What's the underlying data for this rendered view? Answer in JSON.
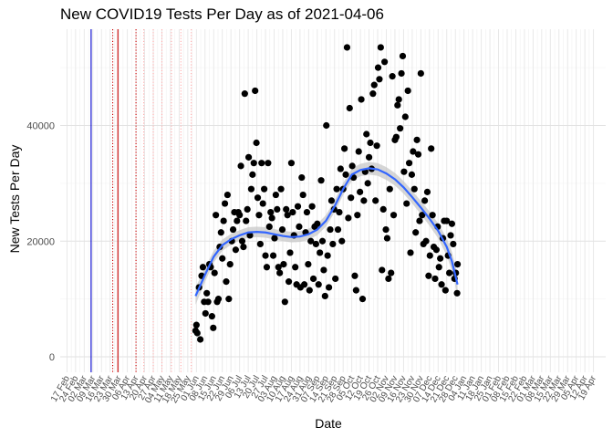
{
  "chart_data": {
    "type": "scatter",
    "title": "New COVID19 Tests Per Day as of 2021-04-06",
    "xlabel": "Date",
    "ylabel": "New Tests Per Day",
    "ylim": [
      -2500,
      56500
    ],
    "y_ticks": [
      0,
      20000,
      40000
    ],
    "grid": true,
    "x_ticks": [
      "17 Feb",
      "24 Feb",
      "02 Mar",
      "09 Mar",
      "16 Mar",
      "23 Mar",
      "30 Mar",
      "06 Apr",
      "13 Apr",
      "20 Apr",
      "27 Apr",
      "04 May",
      "11 May",
      "18 May",
      "25 May",
      "01 Jun",
      "08 Jun",
      "15 Jun",
      "22 Jun",
      "29 Jun",
      "06 Jul",
      "13 Jul",
      "20 Jul",
      "27 Jul",
      "03 Aug",
      "10 Aug",
      "17 Aug",
      "24 Aug",
      "31 Aug",
      "07 Sep",
      "14 Sep",
      "21 Sep",
      "28 Sep",
      "05 Oct",
      "12 Oct",
      "19 Oct",
      "26 Oct",
      "02 Nov",
      "09 Nov",
      "16 Nov",
      "23 Nov",
      "30 Nov",
      "07 Dec",
      "14 Dec",
      "21 Dec",
      "28 Dec",
      "04 Jan",
      "11 Jan",
      "18 Jan",
      "25 Jan",
      "01 Feb",
      "08 Feb",
      "15 Feb",
      "22 Feb",
      "01 Mar",
      "08 Mar",
      "15 Mar",
      "22 Mar",
      "29 Mar",
      "05 Apr",
      "12 Apr",
      "19 Apr"
    ],
    "vlines": [
      {
        "week": 2.8,
        "color": "#0000cc",
        "style": "solid"
      },
      {
        "week": 5.3,
        "color": "#cc0000",
        "style": "dotted"
      },
      {
        "week": 5.9,
        "color": "#cc0000",
        "style": "solid"
      },
      {
        "week": 8.0,
        "color": "#cc0000",
        "style": "dotted"
      },
      {
        "week": 8.9,
        "color": "#ffaaaa",
        "style": "dotted"
      },
      {
        "week": 10.0,
        "color": "#ffaaaa",
        "style": "dotted"
      },
      {
        "week": 11.0,
        "color": "#ffaaaa",
        "style": "dotted"
      },
      {
        "week": 12.1,
        "color": "#ffaaaa",
        "style": "dotted"
      },
      {
        "week": 13.2,
        "color": "#ffaaaa",
        "style": "dotted"
      },
      {
        "week": 14.4,
        "color": "#ffaaaa",
        "style": "dotted"
      }
    ],
    "series": [
      {
        "points": [
          [
            14.9,
            4500
          ],
          [
            15.0,
            5500
          ],
          [
            15.1,
            4100
          ],
          [
            15.3,
            12000
          ],
          [
            15.45,
            3000
          ],
          [
            15.6,
            14000
          ],
          [
            15.75,
            15500
          ],
          [
            15.9,
            9500
          ],
          [
            16.05,
            7500
          ],
          [
            16.2,
            11000
          ],
          [
            16.35,
            9500
          ],
          [
            16.5,
            16000
          ],
          [
            16.65,
            15500
          ],
          [
            16.8,
            7000
          ],
          [
            16.95,
            5000
          ],
          [
            17.1,
            14500
          ],
          [
            17.25,
            24500
          ],
          [
            17.4,
            9500
          ],
          [
            17.55,
            10000
          ],
          [
            17.7,
            19000
          ],
          [
            17.85,
            21500
          ],
          [
            18.0,
            17000
          ],
          [
            18.15,
            23500
          ],
          [
            18.3,
            26500
          ],
          [
            18.45,
            13000
          ],
          [
            18.6,
            28000
          ],
          [
            18.75,
            10000
          ],
          [
            18.9,
            16000
          ],
          [
            19.1,
            20000
          ],
          [
            19.25,
            22000
          ],
          [
            19.4,
            25000
          ],
          [
            19.55,
            18500
          ],
          [
            19.7,
            23500
          ],
          [
            19.85,
            25000
          ],
          [
            20.0,
            24500
          ],
          [
            20.15,
            33000
          ],
          [
            20.3,
            20000
          ],
          [
            20.45,
            19000
          ],
          [
            20.6,
            45500
          ],
          [
            20.75,
            23500
          ],
          [
            20.9,
            25500
          ],
          [
            21.05,
            34500
          ],
          [
            21.2,
            21000
          ],
          [
            21.35,
            29000
          ],
          [
            21.5,
            31500
          ],
          [
            21.65,
            33500
          ],
          [
            21.8,
            46000
          ],
          [
            21.95,
            37000
          ],
          [
            22.1,
            27500
          ],
          [
            22.25,
            24500
          ],
          [
            22.4,
            19500
          ],
          [
            22.55,
            33500
          ],
          [
            22.7,
            26500
          ],
          [
            22.85,
            29000
          ],
          [
            23.0,
            17500
          ],
          [
            23.15,
            15500
          ],
          [
            23.3,
            33500
          ],
          [
            23.45,
            22500
          ],
          [
            23.6,
            25000
          ],
          [
            23.75,
            24000
          ],
          [
            23.9,
            17500
          ],
          [
            24.05,
            20500
          ],
          [
            24.2,
            28000
          ],
          [
            24.35,
            25500
          ],
          [
            24.5,
            15500
          ],
          [
            24.65,
            14500
          ],
          [
            24.8,
            29000
          ],
          [
            24.95,
            22000
          ],
          [
            25.1,
            16000
          ],
          [
            25.25,
            9500
          ],
          [
            25.4,
            25500
          ],
          [
            25.55,
            24500
          ],
          [
            25.7,
            13000
          ],
          [
            25.85,
            18000
          ],
          [
            26.0,
            33500
          ],
          [
            26.15,
            25000
          ],
          [
            26.3,
            21000
          ],
          [
            26.45,
            15500
          ],
          [
            26.6,
            12500
          ],
          [
            26.75,
            26000
          ],
          [
            26.9,
            22500
          ],
          [
            27.05,
            12000
          ],
          [
            27.2,
            31000
          ],
          [
            27.35,
            28000
          ],
          [
            27.5,
            12500
          ],
          [
            27.65,
            21500
          ],
          [
            27.8,
            25000
          ],
          [
            27.95,
            16000
          ],
          [
            28.1,
            11500
          ],
          [
            28.25,
            20000
          ],
          [
            28.4,
            26000
          ],
          [
            28.55,
            13500
          ],
          [
            28.7,
            22500
          ],
          [
            28.85,
            19500
          ],
          [
            29.0,
            23000
          ],
          [
            29.15,
            12500
          ],
          [
            29.3,
            18000
          ],
          [
            29.45,
            30500
          ],
          [
            29.6,
            20000
          ],
          [
            29.75,
            15000
          ],
          [
            29.9,
            10500
          ],
          [
            30.05,
            40000
          ],
          [
            30.2,
            17500
          ],
          [
            30.35,
            12000
          ],
          [
            30.5,
            22000
          ],
          [
            30.65,
            27000
          ],
          [
            30.8,
            19500
          ],
          [
            30.95,
            25500
          ],
          [
            31.1,
            13500
          ],
          [
            31.25,
            29000
          ],
          [
            31.4,
            22000
          ],
          [
            31.55,
            25000
          ],
          [
            31.7,
            32500
          ],
          [
            31.85,
            20000
          ],
          [
            32.0,
            29000
          ],
          [
            32.15,
            36000
          ],
          [
            32.3,
            31500
          ],
          [
            32.45,
            53500
          ],
          [
            32.6,
            24000
          ],
          [
            32.75,
            43000
          ],
          [
            32.9,
            27500
          ],
          [
            33.05,
            33000
          ],
          [
            33.2,
            31000
          ],
          [
            33.35,
            14000
          ],
          [
            33.5,
            11500
          ],
          [
            33.65,
            24500
          ],
          [
            33.8,
            35500
          ],
          [
            33.95,
            28500
          ],
          [
            34.1,
            44500
          ],
          [
            34.25,
            10000
          ],
          [
            34.4,
            27000
          ],
          [
            34.55,
            32000
          ],
          [
            34.7,
            38500
          ],
          [
            34.85,
            30000
          ],
          [
            35.0,
            34500
          ],
          [
            35.15,
            37000
          ],
          [
            35.3,
            32500
          ],
          [
            35.45,
            45500
          ],
          [
            35.6,
            47000
          ],
          [
            35.75,
            27000
          ],
          [
            35.9,
            36500
          ],
          [
            36.05,
            50000
          ],
          [
            36.2,
            48000
          ],
          [
            36.35,
            53500
          ],
          [
            36.5,
            15000
          ],
          [
            36.65,
            25500
          ],
          [
            36.8,
            51000
          ],
          [
            36.95,
            22000
          ],
          [
            37.1,
            20500
          ],
          [
            37.25,
            13500
          ],
          [
            37.4,
            29000
          ],
          [
            37.55,
            14500
          ],
          [
            37.7,
            48500
          ],
          [
            37.85,
            24500
          ],
          [
            38.0,
            37500
          ],
          [
            38.15,
            38000
          ],
          [
            38.3,
            43500
          ],
          [
            38.45,
            44500
          ],
          [
            38.6,
            39500
          ],
          [
            38.75,
            49000
          ],
          [
            38.9,
            52000
          ],
          [
            39.05,
            32000
          ],
          [
            39.2,
            41500
          ],
          [
            39.35,
            26500
          ],
          [
            39.5,
            46000
          ],
          [
            39.65,
            33500
          ],
          [
            39.8,
            18000
          ],
          [
            39.95,
            31500
          ],
          [
            40.1,
            35500
          ],
          [
            40.25,
            29000
          ],
          [
            40.4,
            21500
          ],
          [
            40.55,
            37500
          ],
          [
            40.7,
            35000
          ],
          [
            40.85,
            23500
          ],
          [
            41.0,
            49000
          ],
          [
            41.15,
            24500
          ],
          [
            41.3,
            19500
          ],
          [
            41.45,
            27000
          ],
          [
            41.6,
            20000
          ],
          [
            41.75,
            28500
          ],
          [
            41.9,
            14000
          ],
          [
            42.05,
            17500
          ],
          [
            42.2,
            36000
          ],
          [
            42.35,
            24500
          ],
          [
            42.5,
            19000
          ],
          [
            42.65,
            13500
          ],
          [
            42.8,
            18500
          ],
          [
            42.95,
            22500
          ],
          [
            43.1,
            15500
          ],
          [
            43.25,
            17000
          ],
          [
            43.4,
            12500
          ],
          [
            43.55,
            20500
          ],
          [
            43.7,
            23500
          ],
          [
            43.85,
            11500
          ],
          [
            44.0,
            23500
          ],
          [
            44.15,
            17500
          ],
          [
            44.3,
            14500
          ],
          [
            44.45,
            21000
          ],
          [
            44.6,
            23000
          ],
          [
            44.75,
            19500
          ],
          [
            44.9,
            13500
          ],
          [
            45.05,
            14500
          ],
          [
            45.2,
            11000
          ],
          [
            45.25,
            16000
          ]
        ]
      }
    ],
    "trend": {
      "color": "#3366ff",
      "band_color": "#c8c8c8",
      "points": [
        [
          14.9,
          10500
        ],
        [
          16,
          14200
        ],
        [
          17,
          17300
        ],
        [
          18,
          19300
        ],
        [
          19,
          20300
        ],
        [
          20,
          21000
        ],
        [
          21,
          21500
        ],
        [
          22,
          21600
        ],
        [
          23,
          21500
        ],
        [
          24,
          21200
        ],
        [
          25,
          20900
        ],
        [
          26,
          20700
        ],
        [
          27,
          20800
        ],
        [
          28,
          21200
        ],
        [
          29,
          22000
        ],
        [
          30,
          23500
        ],
        [
          31,
          26000
        ],
        [
          32,
          29000
        ],
        [
          33,
          31500
        ],
        [
          34,
          32300
        ],
        [
          35,
          32600
        ],
        [
          36,
          32400
        ],
        [
          37,
          31700
        ],
        [
          38,
          30700
        ],
        [
          39,
          29300
        ],
        [
          40,
          27600
        ],
        [
          41,
          25800
        ],
        [
          42,
          23900
        ],
        [
          43,
          21800
        ],
        [
          44,
          19000
        ],
        [
          44.6,
          16500
        ],
        [
          45.25,
          12500
        ]
      ],
      "band": [
        [
          14.9,
          1500
        ],
        [
          17,
          1000
        ],
        [
          20,
          900
        ],
        [
          25,
          900
        ],
        [
          30,
          1000
        ],
        [
          35,
          1100
        ],
        [
          40,
          1100
        ],
        [
          43,
          1300
        ],
        [
          45.25,
          1800
        ]
      ]
    }
  }
}
